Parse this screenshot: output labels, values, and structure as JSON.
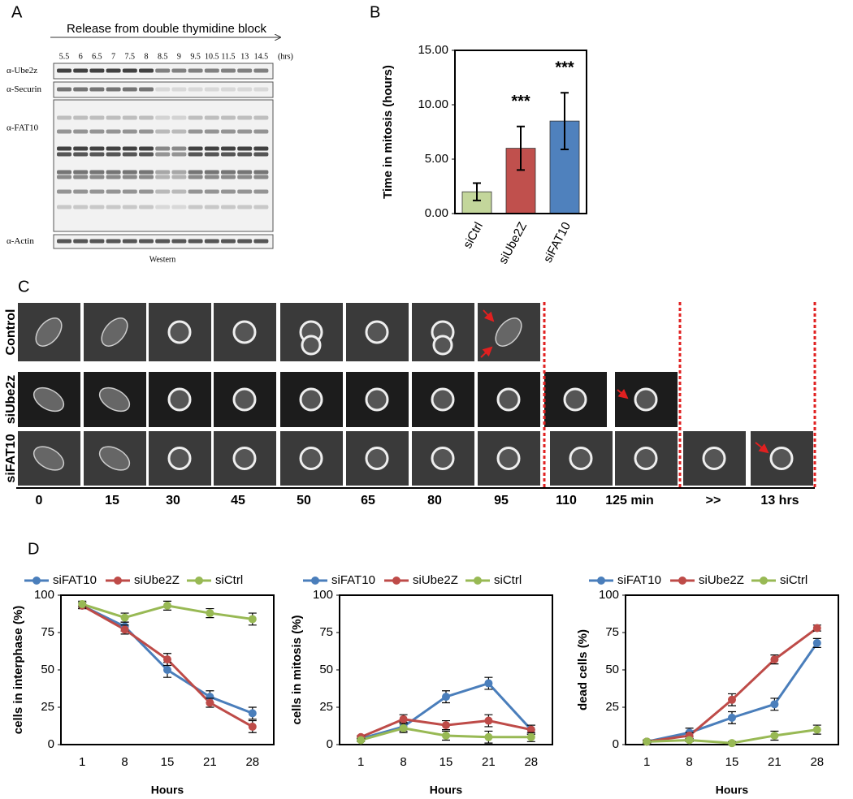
{
  "panel_labels": [
    "A",
    "B",
    "C",
    "D"
  ],
  "blot": {
    "title": "Release from double thymidine block",
    "times": [
      "5.5",
      "6",
      "6.5",
      "7",
      "7.5",
      "8",
      "8.5",
      "9",
      "9.5",
      "10.5",
      "11.5",
      "13",
      "14.5"
    ],
    "unit": "(hrs)",
    "antibodies": [
      "α-Ube2z",
      "α-Securin",
      "α-FAT10",
      "α-Actin"
    ],
    "caption": "Western"
  },
  "microscopy": {
    "rows": [
      "Control",
      "siUbe2z",
      "siFAT10"
    ],
    "times": [
      "0",
      "15",
      "30",
      "45",
      "50",
      "65",
      "80",
      "95",
      "110",
      "125  min",
      ">>",
      "13 hrs"
    ]
  },
  "chart_data": [
    {
      "type": "bar",
      "ylabel": "Time in mitosis (hours)",
      "categories": [
        "siCtrl",
        "siUbe2Z",
        "siFAT10"
      ],
      "values": [
        2.0,
        6.0,
        8.5
      ],
      "errors": [
        0.8,
        2.0,
        2.6
      ],
      "colors": [
        "#c3d69b",
        "#c0504d",
        "#4f81bd"
      ],
      "annotations": [
        {
          "x": "siUbe2Z",
          "text": "***"
        },
        {
          "x": "siFAT10",
          "text": "***"
        }
      ],
      "ylim": [
        0,
        15
      ],
      "yticks": [
        {
          "value": 0,
          "label": "0.00"
        },
        {
          "value": 5,
          "label": "5.00"
        },
        {
          "value": 10,
          "label": "10.00"
        },
        {
          "value": 15,
          "label": "15.00"
        }
      ]
    },
    {
      "type": "line",
      "ylabel": "cells in interphase (%)",
      "xlabel": "Hours",
      "categories": [
        "1",
        "8",
        "15",
        "21",
        "28"
      ],
      "ylim": [
        0,
        100
      ],
      "yticks": [
        0,
        25,
        50,
        75,
        100
      ],
      "legend": "top",
      "series": [
        {
          "name": "siFAT10",
          "color": "#4a7ebb",
          "values": [
            93,
            79,
            50,
            32,
            21
          ],
          "errors": [
            2,
            3,
            5,
            4,
            4
          ]
        },
        {
          "name": "siUbe2Z",
          "color": "#be4b48",
          "values": [
            93,
            77,
            57,
            28,
            12
          ],
          "errors": [
            2,
            3,
            4,
            3,
            4
          ]
        },
        {
          "name": "siCtrl",
          "color": "#98b954",
          "values": [
            94,
            85,
            93,
            88,
            84
          ],
          "errors": [
            2,
            3,
            3,
            3,
            4
          ]
        }
      ]
    },
    {
      "type": "line",
      "ylabel": "cells in mitosis (%)",
      "xlabel": "Hours",
      "categories": [
        "1",
        "8",
        "15",
        "21",
        "28"
      ],
      "ylim": [
        0,
        100
      ],
      "yticks": [
        0,
        25,
        50,
        75,
        100
      ],
      "legend": "top",
      "series": [
        {
          "name": "siFAT10",
          "color": "#4a7ebb",
          "values": [
            4,
            12,
            32,
            41,
            10
          ],
          "errors": [
            1,
            3,
            4,
            4,
            3
          ]
        },
        {
          "name": "siUbe2Z",
          "color": "#be4b48",
          "values": [
            5,
            17,
            13,
            16,
            10
          ],
          "errors": [
            1,
            3,
            3,
            4,
            3
          ]
        },
        {
          "name": "siCtrl",
          "color": "#98b954",
          "values": [
            3,
            11,
            6,
            5,
            5
          ],
          "errors": [
            1,
            3,
            3,
            4,
            3
          ]
        }
      ]
    },
    {
      "type": "line",
      "ylabel": "dead cells (%)",
      "xlabel": "Hours",
      "categories": [
        "1",
        "8",
        "15",
        "21",
        "28"
      ],
      "ylim": [
        0,
        100
      ],
      "yticks": [
        0,
        25,
        50,
        75,
        100
      ],
      "legend": "top",
      "series": [
        {
          "name": "siFAT10",
          "color": "#4a7ebb",
          "values": [
            2,
            8,
            18,
            27,
            68
          ],
          "errors": [
            1,
            3,
            4,
            4,
            3
          ]
        },
        {
          "name": "siUbe2Z",
          "color": "#be4b48",
          "values": [
            2,
            6,
            30,
            57,
            78
          ],
          "errors": [
            1,
            2,
            4,
            3,
            2
          ]
        },
        {
          "name": "siCtrl",
          "color": "#98b954",
          "values": [
            2,
            3,
            1,
            6,
            10
          ],
          "errors": [
            1,
            1,
            1,
            3,
            3
          ]
        }
      ]
    }
  ]
}
